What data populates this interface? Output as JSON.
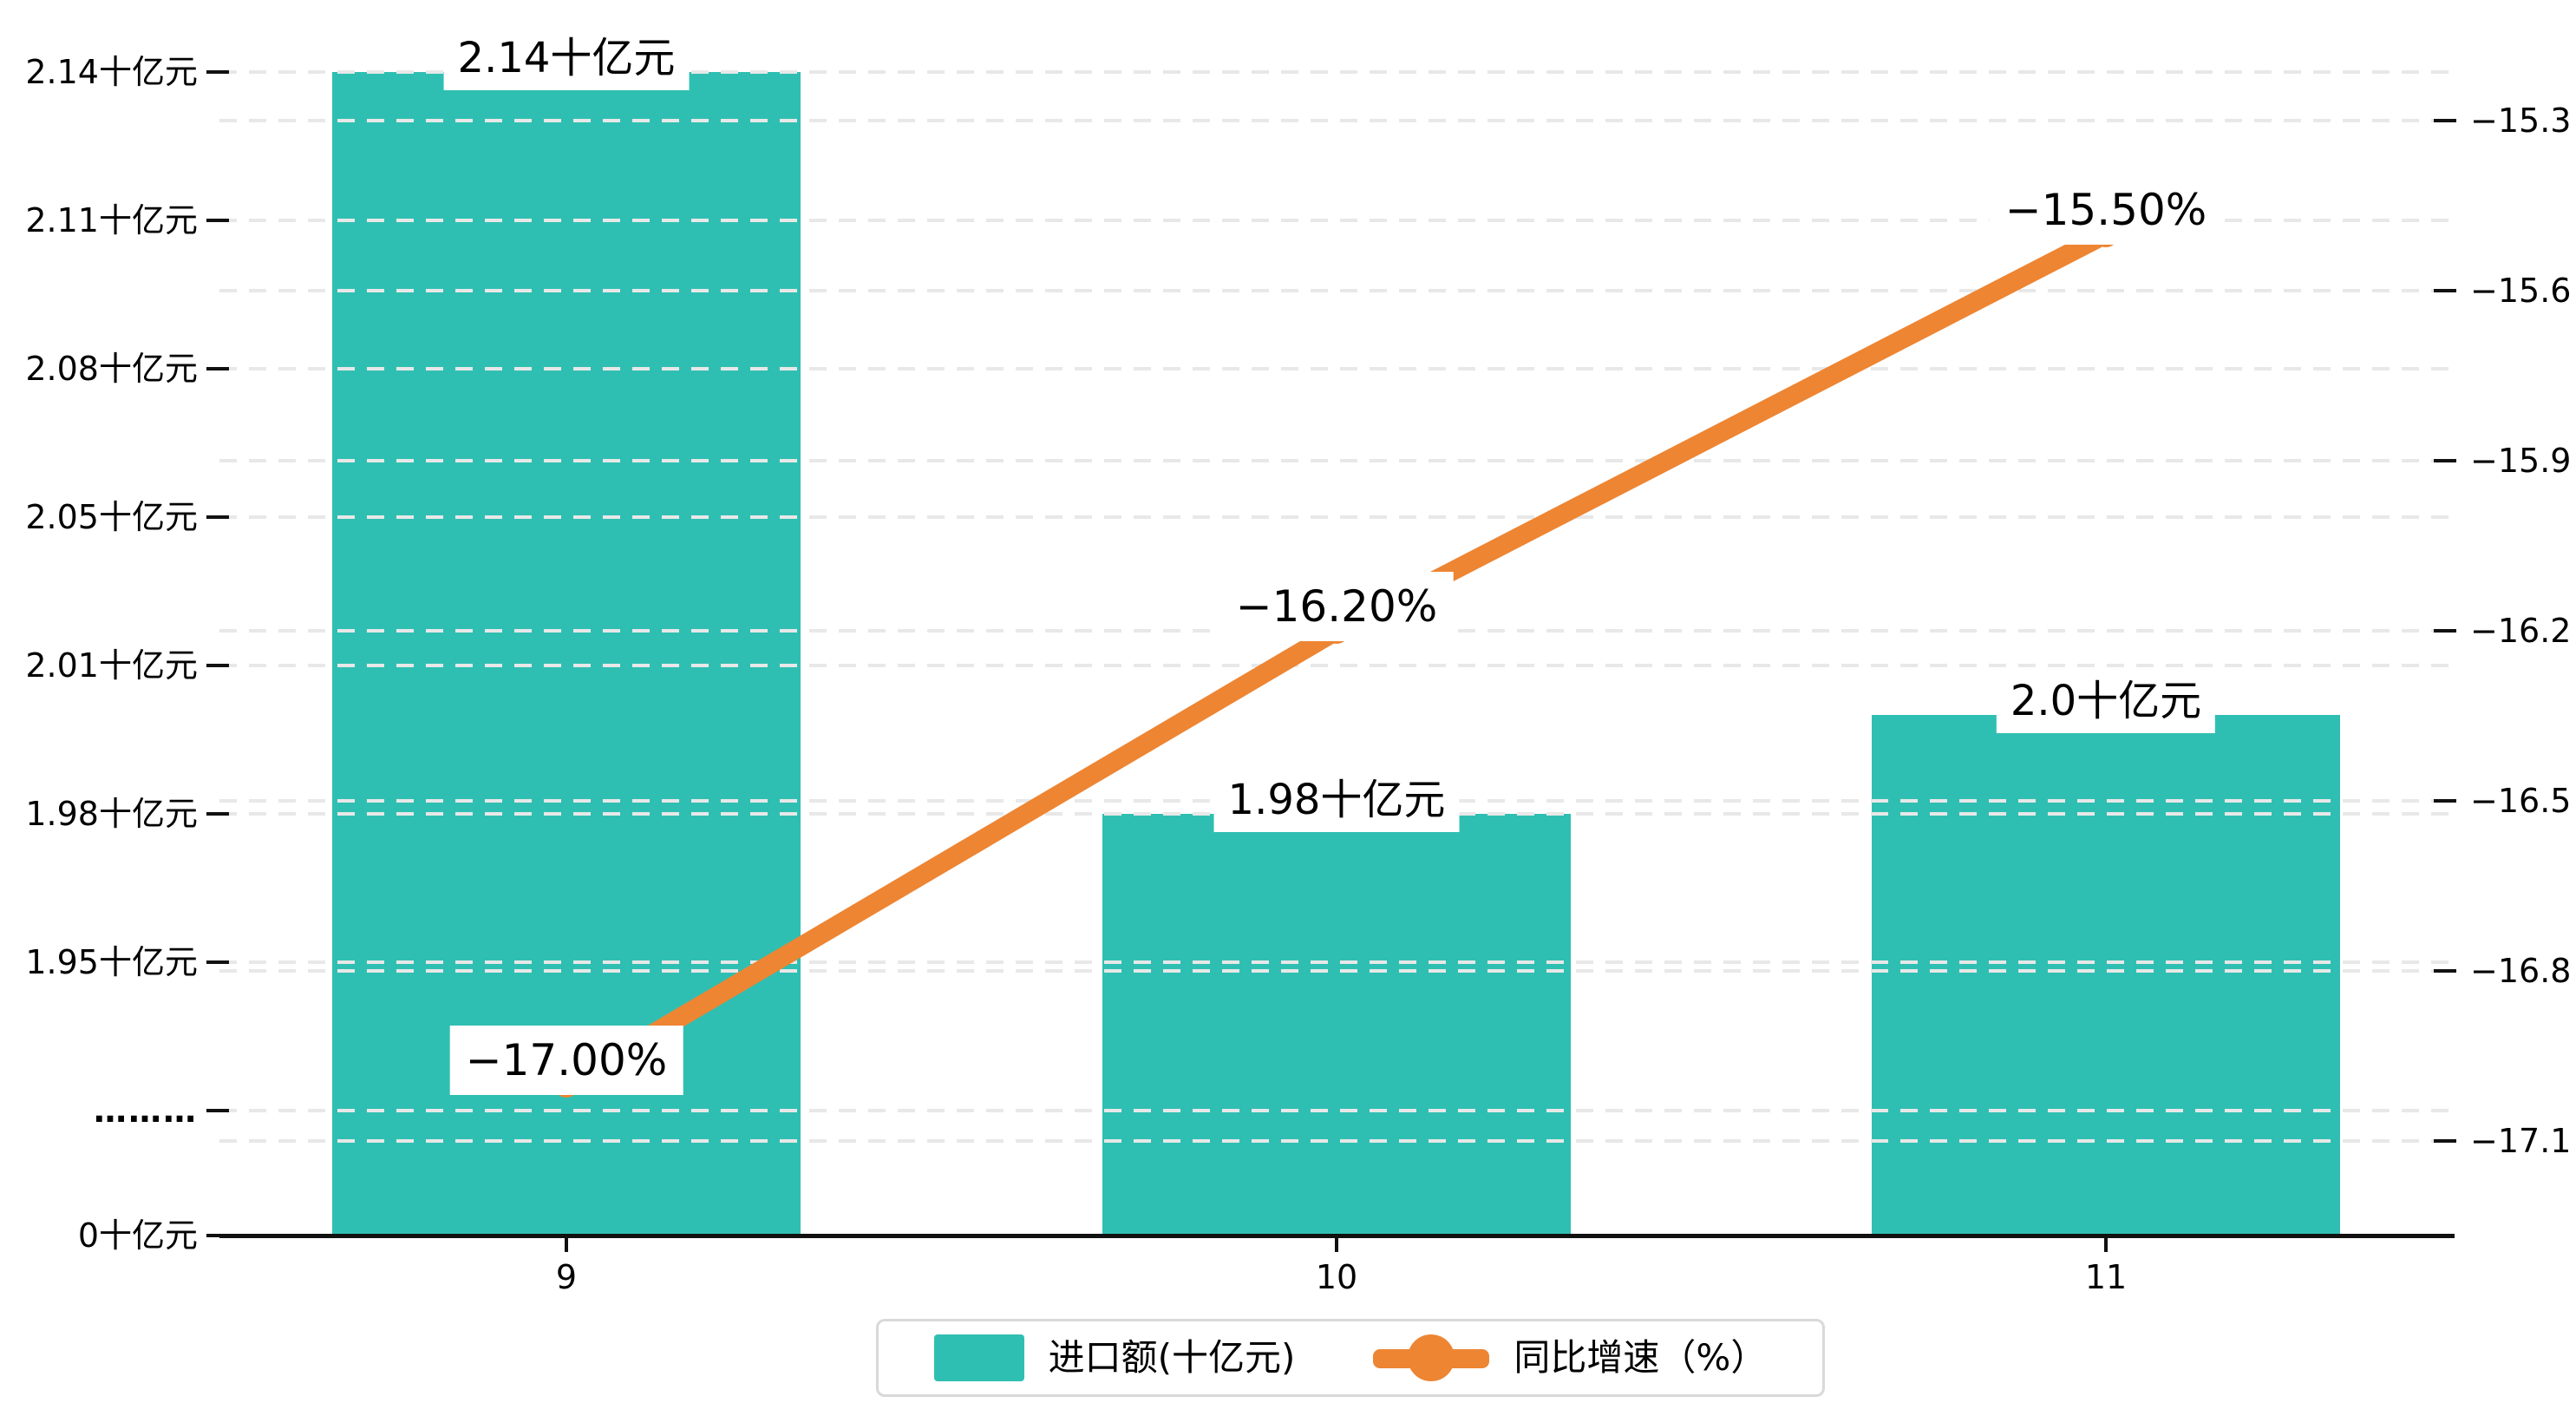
{
  "chart_data": {
    "type": "combo",
    "categories": [
      "9",
      "10",
      "11"
    ],
    "series": [
      {
        "name": "进口额(十亿元)",
        "type": "bar",
        "values": [
          2.14,
          1.98,
          2.0
        ],
        "labels": [
          "2.14十亿元",
          "1.98十亿元",
          "2.0十亿元"
        ],
        "color": "#2FBFB2",
        "axis": "left"
      },
      {
        "name": "同比增速（%）",
        "type": "line",
        "values": [
          -17.0,
          -16.2,
          -15.5
        ],
        "labels": [
          "−17.00%",
          "−16.20%",
          "−15.50%"
        ],
        "color": "#ED8533",
        "axis": "right"
      }
    ],
    "left_axis": {
      "tick_labels": [
        "2.14十亿元",
        "2.11十亿元",
        "2.08十亿元",
        "2.05十亿元",
        "2.01十亿元",
        "1.98十亿元",
        "1.95十亿元",
        "………",
        "0十亿元"
      ],
      "tick_values": [
        2.14,
        2.11,
        2.08,
        2.05,
        2.01,
        1.98,
        1.95
      ],
      "unit": "十亿元",
      "axis_break": true
    },
    "right_axis": {
      "tick_labels": [
        "−15.3",
        "−15.6",
        "−15.9",
        "−16.2",
        "−16.5",
        "−16.8",
        "−17.1"
      ],
      "tick_values": [
        -15.3,
        -15.6,
        -15.9,
        -16.2,
        -16.5,
        -16.8,
        -17.1
      ],
      "range": [
        -17.1,
        -15.3
      ]
    },
    "grid": true,
    "legend_position": "bottom"
  },
  "legend": {
    "bar_label": "进口额(十亿元)",
    "line_label": "同比增速（%）"
  },
  "colors": {
    "bar": "#2FBFB2",
    "line": "#ED8533",
    "gridline": "#e8e8e8",
    "axis": "#111111",
    "text": "#000000",
    "legend_border": "#d9d9d9",
    "label_background": "#ffffff"
  }
}
